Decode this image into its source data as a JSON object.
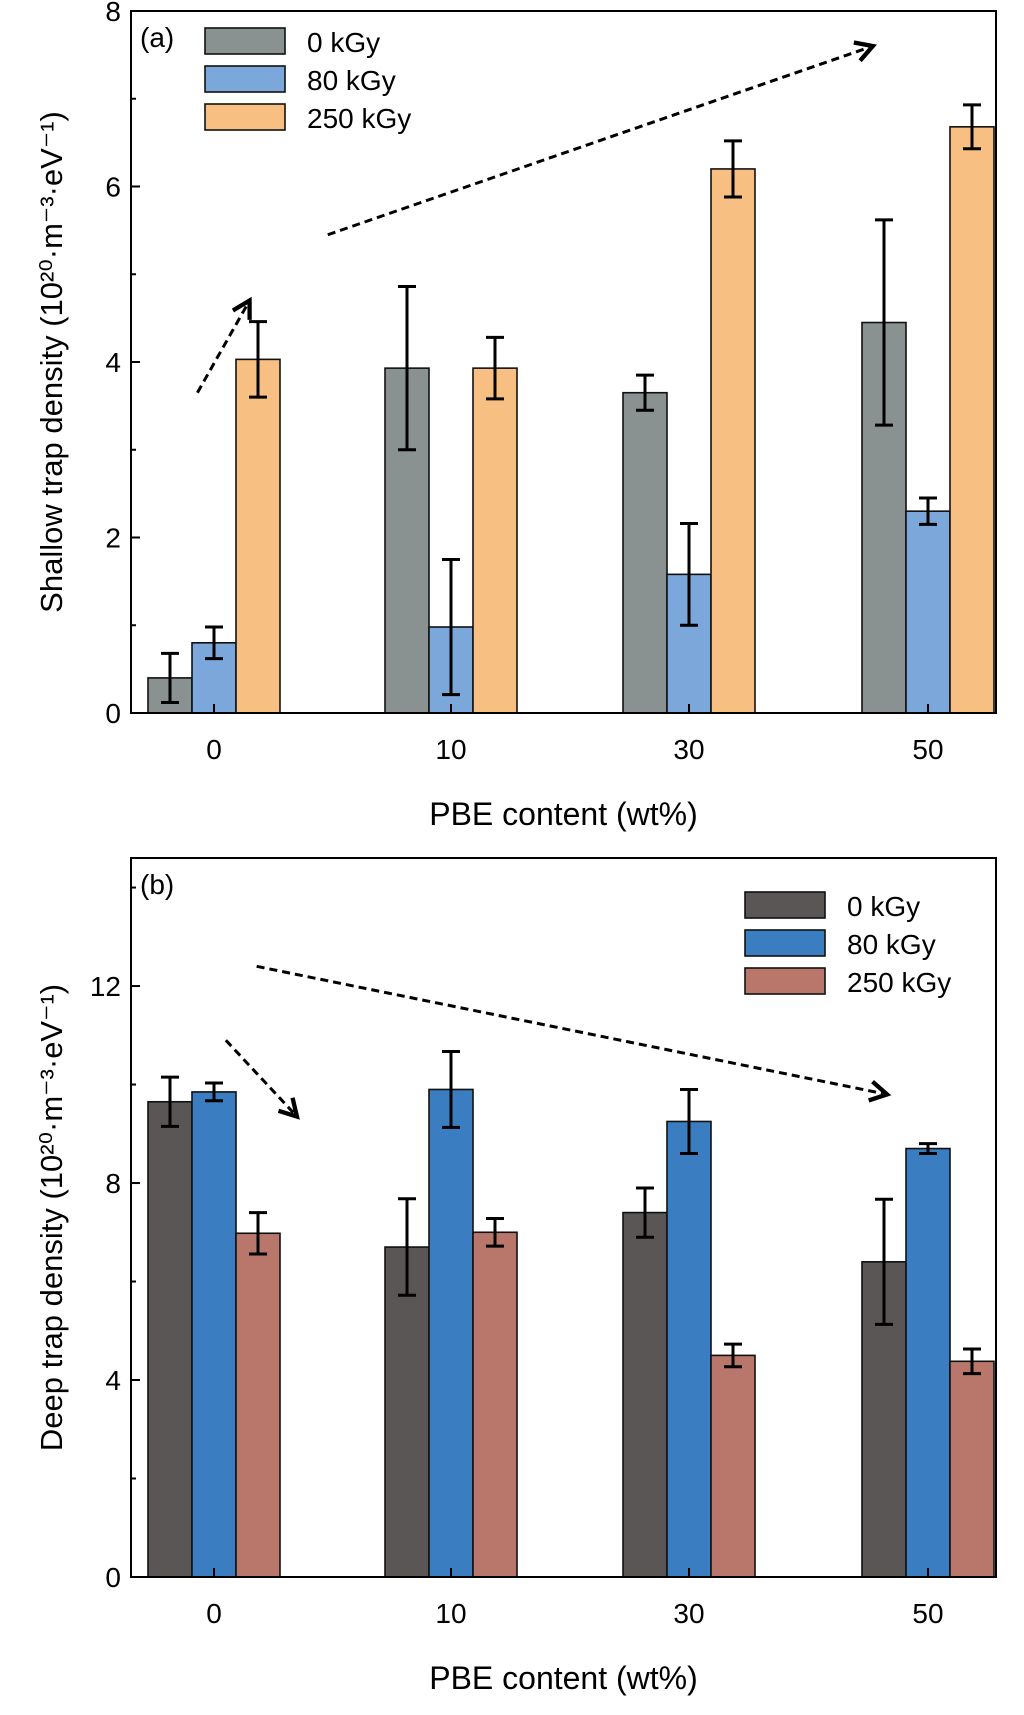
{
  "chart_data": [
    {
      "type": "bar",
      "panel_label": "(a)",
      "categories": [
        "0",
        "10",
        "30",
        "50"
      ],
      "xlabel": "PBE content (wt%)",
      "ylabel": "Shallow trap density (10²⁰·m⁻³·eV⁻¹)",
      "ylim": [
        0,
        8
      ],
      "yticks": [
        0,
        2,
        4,
        6,
        8
      ],
      "grid": false,
      "legend": "top-left",
      "series": [
        {
          "name": "0 kGy",
          "color": "#8a9191",
          "values": [
            0.4,
            3.93,
            3.65,
            4.45
          ],
          "errors": [
            0.28,
            0.93,
            0.2,
            1.17
          ]
        },
        {
          "name": "80 kGy",
          "color": "#7ba7da",
          "values": [
            0.8,
            0.98,
            1.58,
            2.3
          ],
          "errors": [
            0.18,
            0.77,
            0.58,
            0.15
          ]
        },
        {
          "name": "250 kGy",
          "color": "#f8bf83",
          "values": [
            4.03,
            3.93,
            6.2,
            6.68
          ],
          "errors": [
            0.43,
            0.35,
            0.32,
            0.25
          ]
        }
      ],
      "arrows": [
        {
          "from": [
            -0.07,
            3.65
          ],
          "to": [
            0.15,
            4.7
          ]
        },
        {
          "from": [
            0.48,
            5.45
          ],
          "to": [
            2.78,
            7.6
          ]
        }
      ]
    },
    {
      "type": "bar",
      "panel_label": "(b)",
      "categories": [
        "0",
        "10",
        "30",
        "50"
      ],
      "xlabel": "PBE content (wt%)",
      "ylabel": "Deep trap density (10²⁰·m⁻³·eV⁻¹)",
      "ylim": [
        0,
        14.6
      ],
      "yticks": [
        0,
        4,
        8,
        12
      ],
      "grid": false,
      "legend": "top-right",
      "series": [
        {
          "name": "0 kGy",
          "color": "#5b5656",
          "values": [
            9.65,
            6.7,
            7.4,
            6.4
          ],
          "errors": [
            0.5,
            0.98,
            0.5,
            1.27
          ]
        },
        {
          "name": "80 kGy",
          "color": "#3a7ec1",
          "values": [
            9.85,
            9.9,
            9.25,
            8.7
          ],
          "errors": [
            0.18,
            0.77,
            0.65,
            0.1
          ]
        },
        {
          "name": "250 kGy",
          "color": "#b9776b",
          "values": [
            6.98,
            7.0,
            4.5,
            4.38
          ],
          "errors": [
            0.42,
            0.28,
            0.23,
            0.25
          ]
        }
      ],
      "arrows": [
        {
          "from": [
            0.05,
            10.9
          ],
          "to": [
            0.35,
            9.35
          ]
        },
        {
          "from": [
            0.18,
            12.4
          ],
          "to": [
            2.84,
            9.8
          ]
        }
      ]
    }
  ]
}
